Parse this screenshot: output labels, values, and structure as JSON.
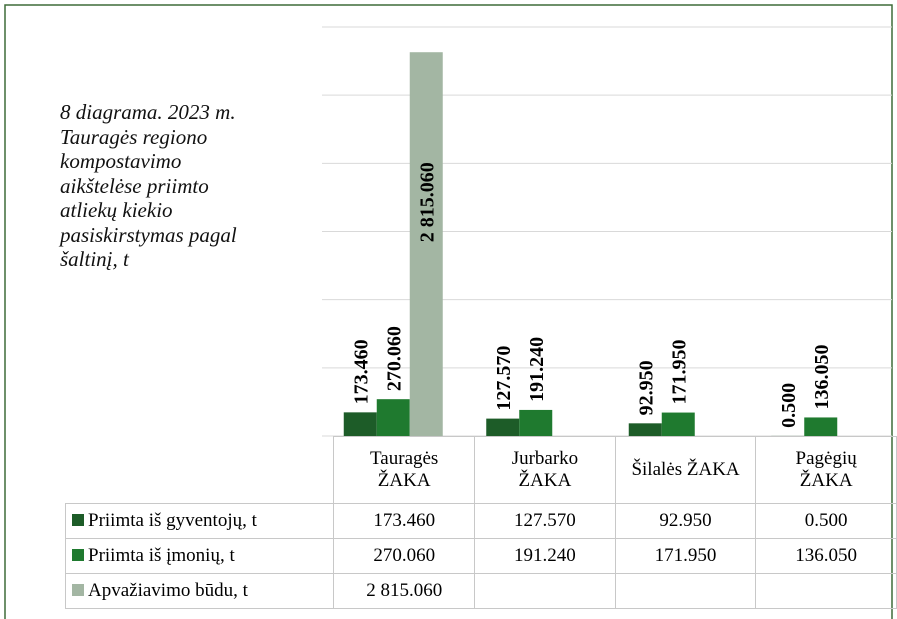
{
  "chart_data": {
    "type": "bar",
    "title": "8 diagrama. 2023 m. Tauragės regiono kompostavimo aikštelėse priimto atliekų kiekio pasiskirstymas pagal šaltinį, t",
    "categories": [
      "Tauragės ŽAKA",
      "Jurbarko ŽAKA",
      "Šilalės ŽAKA",
      "Pagėgių ŽAKA"
    ],
    "series": [
      {
        "name": "Priimta iš gyventojų, t",
        "color": "#1d5c28",
        "values": [
          173.46,
          127.57,
          92.95,
          0.5
        ],
        "value_labels": [
          "173.460",
          "127.570",
          "92.950",
          "0.500"
        ]
      },
      {
        "name": "Priimta iš įmonių, t",
        "color": "#1f7a2f",
        "values": [
          270.06,
          191.24,
          171.95,
          136.05
        ],
        "value_labels": [
          "270.060",
          "191.240",
          "171.950",
          "136.050"
        ]
      },
      {
        "name": "Apvažiavimo būdu, t",
        "color": "#a3b6a3",
        "values": [
          2815.06,
          null,
          null,
          null
        ],
        "value_labels": [
          "2 815.060",
          null,
          null,
          null
        ]
      }
    ],
    "ylim": [
      0,
      3000
    ],
    "yticks": [
      0,
      500,
      1000,
      1500,
      2000,
      2500,
      3000
    ],
    "grid": true
  }
}
